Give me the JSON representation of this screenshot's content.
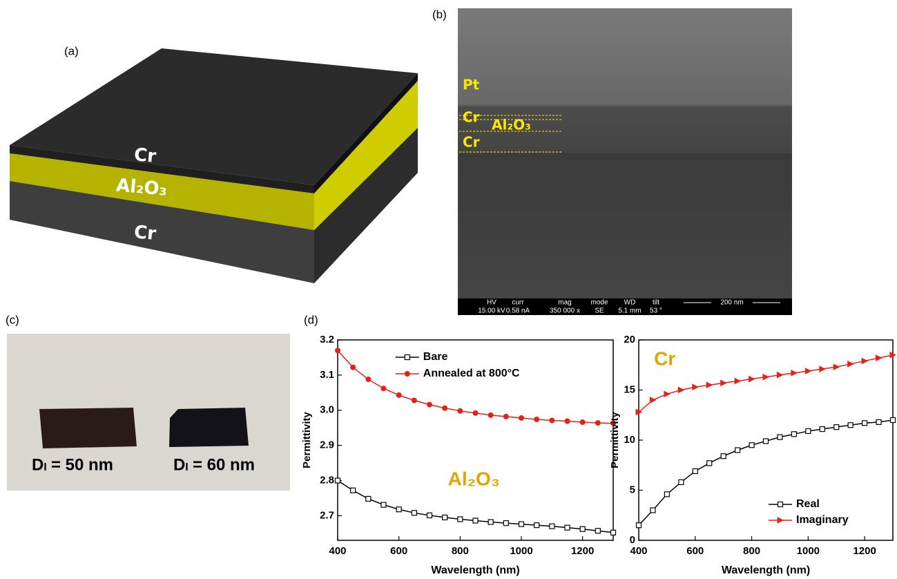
{
  "panel_labels": [
    "(a)",
    "(b)",
    "(c)",
    "(d)"
  ],
  "schematic": {
    "layers": [
      "Cr",
      "Al₂O₃",
      "Cr"
    ]
  },
  "sem": {
    "labels": [
      "Pt",
      "Cr",
      "Al₂O₃",
      "Cr"
    ],
    "info": [
      {
        "name": "HV",
        "value": "15.00 kV"
      },
      {
        "name": "curr",
        "value": "0.58 nA"
      },
      {
        "name": "mag",
        "value": "350 000 x"
      },
      {
        "name": "mode",
        "value": "SE"
      },
      {
        "name": "WD",
        "value": "5.1 mm"
      },
      {
        "name": "tilt",
        "value": "53 °"
      }
    ],
    "scale_bar": "200 nm"
  },
  "photo": {
    "labels": [
      "Dₗ = 50 nm",
      "Dₗ = 60 nm"
    ]
  },
  "chart_data": [
    {
      "type": "line",
      "x_label": "Wavelength (nm)",
      "y_label": "Permittivity",
      "annotation": "Al₂O₃",
      "annotation_color": "#e0a500",
      "xlim": [
        400,
        1300
      ],
      "xticks": [
        400,
        600,
        800,
        1000,
        1200
      ],
      "ylim": [
        2.63,
        3.2
      ],
      "yticks": [
        2.7,
        2.8,
        2.9,
        {
          "value": 3,
          "label": "3.0"
        },
        3.1,
        3.2
      ],
      "legend": "upper center",
      "x": [
        400,
        450,
        500,
        550,
        600,
        650,
        700,
        750,
        800,
        850,
        900,
        950,
        1000,
        1050,
        1100,
        1150,
        1200,
        1250,
        1300
      ],
      "series": [
        {
          "name": "Bare",
          "color": "#000000",
          "marker": "square",
          "values": [
            2.8,
            2.772,
            2.748,
            2.731,
            2.718,
            2.708,
            2.701,
            2.695,
            2.69,
            2.686,
            2.682,
            2.679,
            2.676,
            2.673,
            2.67,
            2.666,
            2.662,
            2.657,
            2.652
          ]
        },
        {
          "name": "Annealed at 800°C",
          "color": "#e8201a",
          "marker": "circle",
          "values": [
            3.17,
            3.122,
            3.088,
            3.062,
            3.043,
            3.028,
            3.016,
            3.006,
            2.998,
            2.992,
            2.986,
            2.982,
            2.978,
            2.974,
            2.971,
            2.969,
            2.966,
            2.964,
            2.963
          ]
        }
      ]
    },
    {
      "type": "line",
      "x_label": "Wavelength (nm)",
      "y_label": "Permittivity",
      "annotation": "Cr",
      "annotation_color": "#e0a500",
      "xlim": [
        400,
        1300
      ],
      "xticks": [
        400,
        600,
        800,
        1000,
        1200
      ],
      "ylim": [
        0,
        20
      ],
      "yticks": [
        0,
        5,
        10,
        15,
        20
      ],
      "legend": "lower right",
      "x": [
        400,
        450,
        500,
        550,
        600,
        650,
        700,
        750,
        800,
        850,
        900,
        950,
        1000,
        1050,
        1100,
        1150,
        1200,
        1250,
        1300
      ],
      "series": [
        {
          "name": "Real",
          "color": "#000000",
          "marker": "square",
          "values": [
            1.5,
            3.0,
            4.6,
            5.8,
            6.9,
            7.7,
            8.4,
            9.0,
            9.5,
            9.9,
            10.3,
            10.6,
            10.9,
            11.1,
            11.3,
            11.5,
            11.7,
            11.8,
            12.0
          ]
        },
        {
          "name": "Imaginary",
          "color": "#e8201a",
          "marker": "triangle",
          "values": [
            12.8,
            14.0,
            14.6,
            15.0,
            15.3,
            15.5,
            15.7,
            15.9,
            16.1,
            16.3,
            16.5,
            16.7,
            16.9,
            17.1,
            17.3,
            17.6,
            17.9,
            18.2,
            18.5
          ]
        }
      ]
    }
  ]
}
